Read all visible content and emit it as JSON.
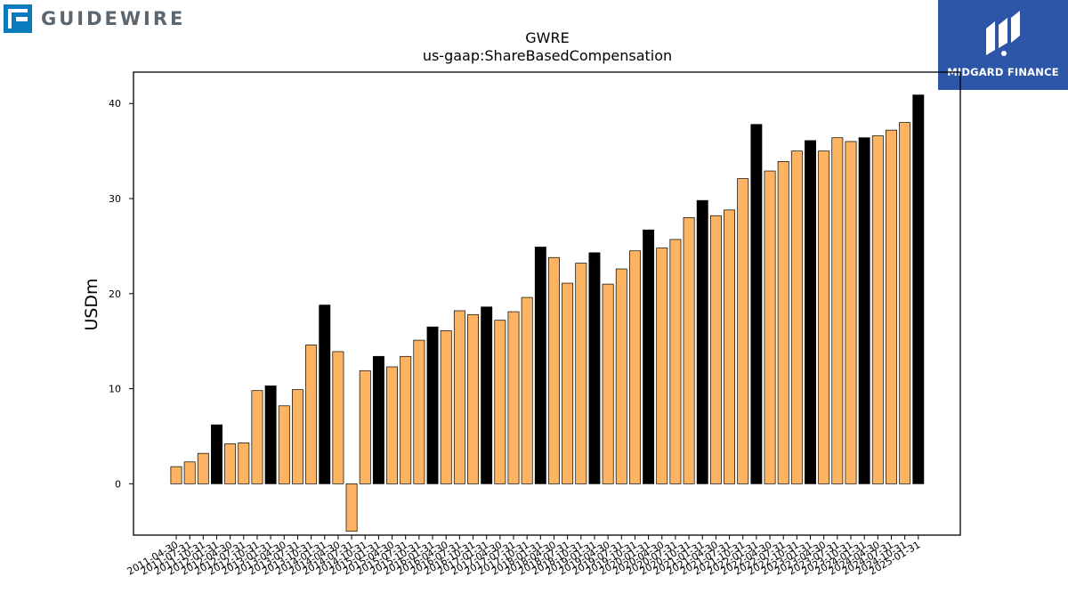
{
  "brand_left": {
    "name": "GUIDEWIRE",
    "icon": "guidewire-logo-icon",
    "color": "#5b6770",
    "accent": "#0a7bbf"
  },
  "brand_right": {
    "name": "MIDGARD FINANCE",
    "icon": "midgard-logo-icon",
    "background": "#2d56a8"
  },
  "chart_data": {
    "type": "bar",
    "title": "GWRE",
    "subtitle": "us-gaap:ShareBasedCompensation",
    "xlabel": "",
    "ylabel": "USDm",
    "ylim": [
      -5.4,
      43.3
    ],
    "yticks": [
      0,
      10,
      20,
      30,
      40
    ],
    "grid": false,
    "legend": "none",
    "colors": {
      "quarter": "#fdb462",
      "annual": "#000000",
      "edge": "#000000"
    },
    "categories": [
      "2011-04-30",
      "2011-07-31",
      "2011-10-31",
      "2012-01-31",
      "2012-04-30",
      "2012-07-31",
      "2012-10-31",
      "2013-01-31",
      "2013-04-30",
      "2013-07-31",
      "2013-10-31",
      "2014-01-31",
      "2014-04-30",
      "2014-07-31",
      "2014-10-31",
      "2015-01-31",
      "2015-04-30",
      "2015-07-31",
      "2015-10-31",
      "2016-01-31",
      "2016-04-30",
      "2016-07-31",
      "2016-10-31",
      "2017-01-31",
      "2017-04-30",
      "2017-07-31",
      "2017-10-31",
      "2018-01-31",
      "2018-04-30",
      "2018-07-31",
      "2018-10-31",
      "2019-01-31",
      "2019-04-30",
      "2019-07-31",
      "2019-10-31",
      "2020-01-31",
      "2020-04-30",
      "2020-07-31",
      "2020-10-31",
      "2021-01-31",
      "2021-04-30",
      "2021-07-31",
      "2021-10-31",
      "2022-01-31",
      "2022-04-30",
      "2022-07-31",
      "2022-10-31",
      "2023-01-31",
      "2023-04-30",
      "2023-07-31",
      "2023-10-31",
      "2024-01-31",
      "2024-04-30",
      "2024-07-31",
      "2024-10-31",
      "2025-01-31"
    ],
    "values": [
      1.8,
      2.3,
      3.2,
      6.2,
      4.2,
      4.3,
      9.8,
      10.3,
      8.2,
      9.9,
      14.6,
      18.8,
      13.9,
      -5.0,
      11.9,
      13.4,
      12.3,
      13.4,
      15.1,
      16.5,
      16.1,
      18.2,
      17.8,
      18.6,
      17.2,
      18.1,
      19.6,
      24.9,
      23.8,
      21.1,
      23.2,
      24.3,
      21.0,
      22.6,
      24.5,
      26.7,
      24.8,
      25.7,
      28.0,
      29.8,
      28.2,
      28.8,
      32.1,
      37.8,
      32.9,
      33.9,
      35.0,
      36.1,
      35.0,
      36.4,
      36.0,
      36.4,
      36.6,
      37.2,
      38.0,
      40.9
    ],
    "annual_flags": [
      false,
      false,
      false,
      true,
      false,
      false,
      false,
      true,
      false,
      false,
      false,
      true,
      false,
      false,
      false,
      true,
      false,
      false,
      false,
      true,
      false,
      false,
      false,
      true,
      false,
      false,
      false,
      true,
      false,
      false,
      false,
      true,
      false,
      false,
      false,
      true,
      false,
      false,
      false,
      true,
      false,
      false,
      false,
      true,
      false,
      false,
      false,
      true,
      false,
      false,
      false,
      true,
      false,
      false,
      false,
      true
    ]
  }
}
